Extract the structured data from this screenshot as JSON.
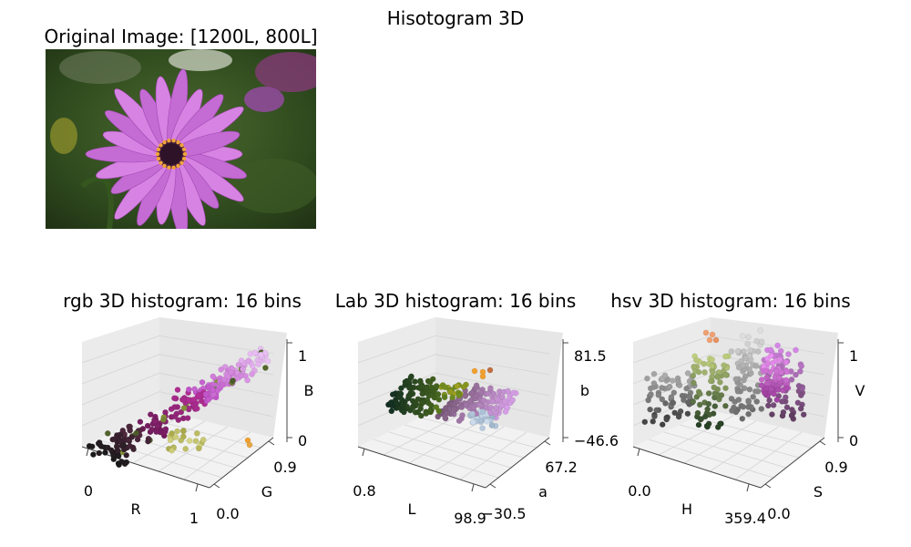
{
  "figure": {
    "suptitle": "Hisotogram 3D"
  },
  "image_panel": {
    "title": "Original Image: [1200L, 800L]"
  },
  "chart_data": [
    {
      "type": "scatter",
      "projection": "3d",
      "title": "rgb 3D histogram: 16 bins",
      "xlabel": "R",
      "ylabel": "G",
      "zlabel": "B",
      "x_ticks": [
        "0",
        "1"
      ],
      "y_ticks": [
        "0.0",
        "0.9"
      ],
      "z_ticks": [
        "0",
        "1"
      ],
      "xlim": [
        0,
        1
      ],
      "ylim": [
        0,
        0.9
      ],
      "zlim": [
        0,
        1
      ],
      "grid": true,
      "bins": 16
    },
    {
      "type": "scatter",
      "projection": "3d",
      "title": "Lab 3D histogram: 16 bins",
      "xlabel": "L",
      "ylabel": "a",
      "zlabel": "b",
      "x_ticks": [
        "0.8",
        "98.9"
      ],
      "y_ticks": [
        "−30.5",
        "67.2"
      ],
      "z_ticks": [
        "−46.6",
        "81.5"
      ],
      "xlim": [
        0.8,
        98.9
      ],
      "ylim": [
        -30.5,
        67.2
      ],
      "zlim": [
        -46.6,
        81.5
      ],
      "grid": true,
      "bins": 16
    },
    {
      "type": "scatter",
      "projection": "3d",
      "title": "hsv 3D histogram: 16 bins",
      "xlabel": "H",
      "ylabel": "S",
      "zlabel": "V",
      "x_ticks": [
        "0.0",
        "359.4"
      ],
      "y_ticks": [
        "0.0",
        "0.9"
      ],
      "z_ticks": [
        "0",
        "1"
      ],
      "xlim": [
        0,
        359.4
      ],
      "ylim": [
        0,
        0.9
      ],
      "zlim": [
        0,
        1
      ],
      "grid": true,
      "bins": 16
    }
  ]
}
